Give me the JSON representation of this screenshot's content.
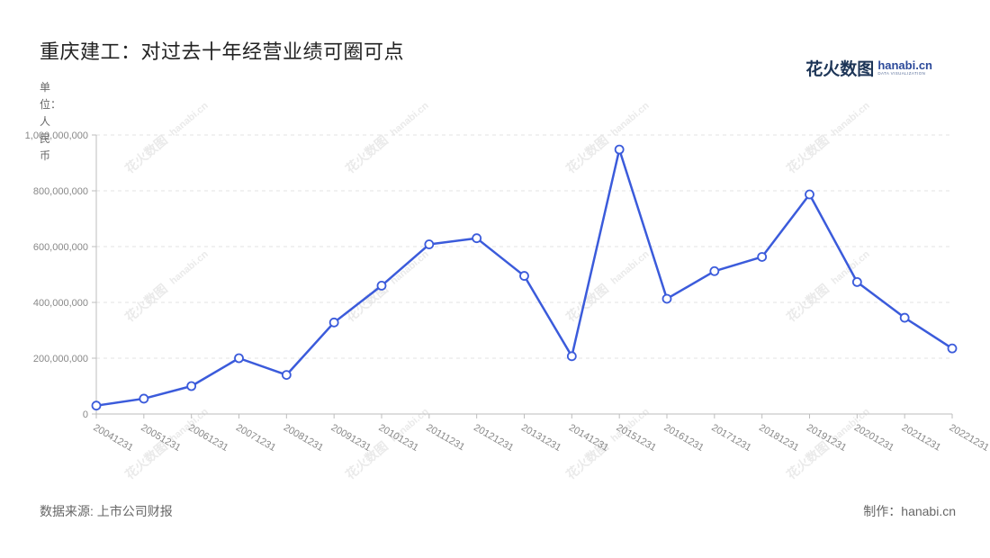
{
  "title": "重庆建工：对过去十年经营业绩可圈可点",
  "unit_label": "单位：人民币",
  "logo": {
    "cn": "花火数图",
    "en": "hanabi.cn",
    "sub": "DATA VISUALIZATION"
  },
  "footer": {
    "source": "数据来源: 上市公司财报",
    "credit": "制作：hanabi.cn"
  },
  "watermark": {
    "cn": "花火数图",
    "en": "hanabi.cn"
  },
  "colors": {
    "line": "#3b5bdb",
    "grid": "#e3e3e3",
    "axis": "#bdbdbd",
    "text": "#888888"
  },
  "chart_data": {
    "type": "line",
    "categories": [
      "20041231",
      "20051231",
      "20061231",
      "20071231",
      "20081231",
      "20091231",
      "20101231",
      "20111231",
      "20121231",
      "20131231",
      "20141231",
      "20151231",
      "20161231",
      "20171231",
      "20181231",
      "20191231",
      "20201231",
      "20211231",
      "20221231"
    ],
    "series": [
      {
        "values": [
          30000000,
          55000000,
          100000000,
          200000000,
          140000000,
          328000000,
          460000000,
          608000000,
          630000000,
          495000000,
          207000000,
          948000000,
          413000000,
          512000000,
          563000000,
          787000000,
          473000000,
          345000000,
          235000000
        ]
      }
    ],
    "ylim": [
      0,
      1000000000
    ],
    "yticks": [
      0,
      200000000,
      400000000,
      600000000,
      800000000,
      1000000000
    ],
    "ytick_labels": [
      "0",
      "200,000,000",
      "400,000,000",
      "600,000,000",
      "800,000,000",
      "1,000,000,000"
    ],
    "grid": true,
    "legend": "none"
  }
}
